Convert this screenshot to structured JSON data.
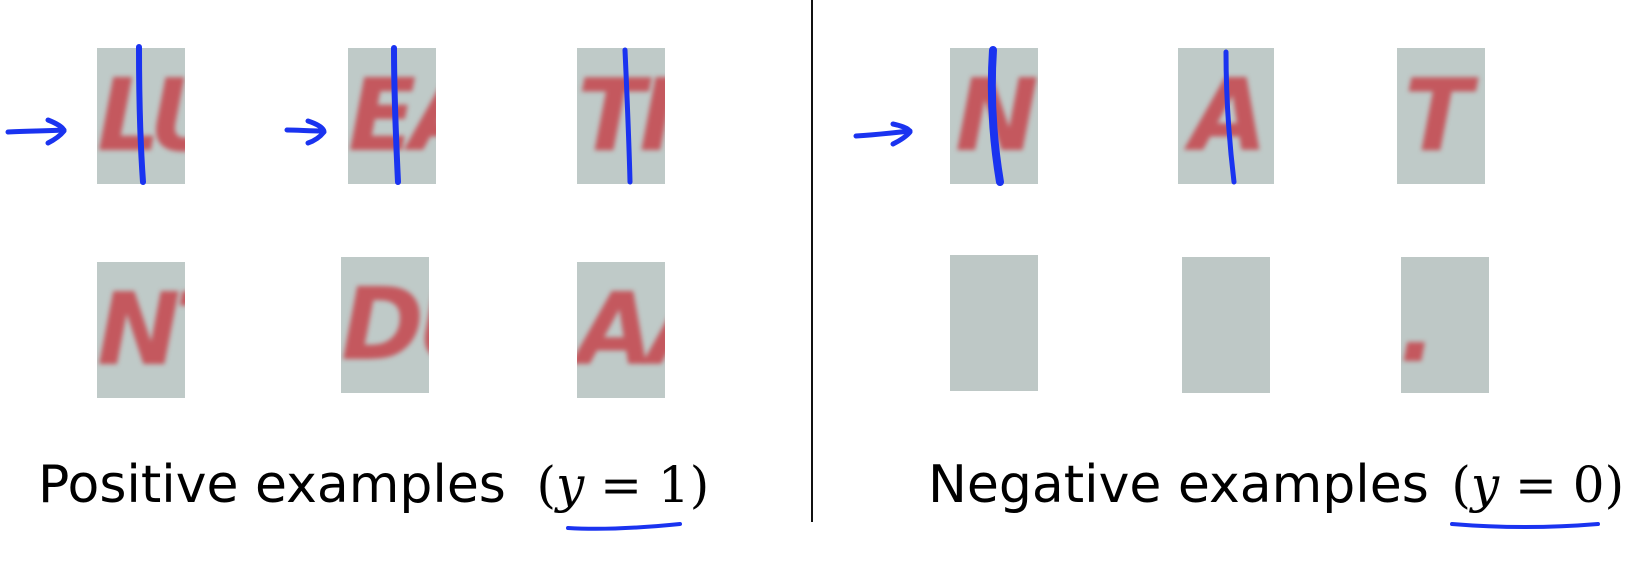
{
  "colors": {
    "ink": "#1a33f0",
    "patch_bg": "#bfcac8",
    "glyph": "#c4585e"
  },
  "positive": {
    "caption": "Positive examples",
    "label_open": "(",
    "label_var": "y",
    "label_eq": " = 1",
    "label_close": ")",
    "patches": [
      "LU",
      "EA",
      "TI",
      "NT",
      "DU",
      "AA"
    ]
  },
  "negative": {
    "caption": "Negative examples",
    "label_open": "(",
    "label_var": "y",
    "label_eq": " = 0",
    "label_close": ")",
    "patches": [
      "N",
      "A",
      "T",
      "",
      "",
      "."
    ]
  }
}
